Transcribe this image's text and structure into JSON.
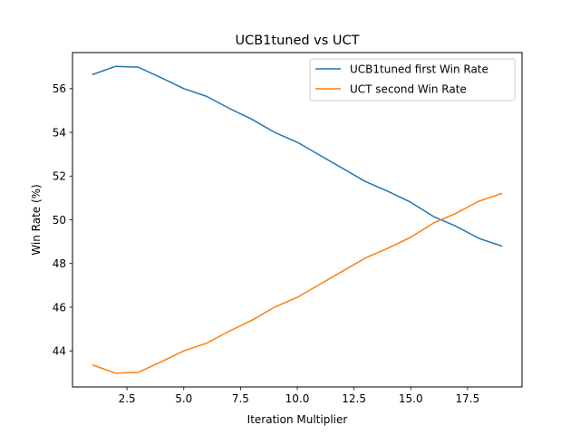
{
  "chart_data": {
    "type": "line",
    "title": "UCB1tuned vs UCT",
    "xlabel": "Iteration Multiplier",
    "ylabel": "Win Rate (%)",
    "xlim": [
      0.1,
      19.9
    ],
    "ylim": [
      42.35,
      57.65
    ],
    "xticks": [
      2.5,
      5.0,
      7.5,
      10.0,
      12.5,
      15.0,
      17.5
    ],
    "xtick_labels": [
      "2.5",
      "5.0",
      "7.5",
      "10.0",
      "12.5",
      "15.0",
      "17.5"
    ],
    "yticks": [
      44,
      46,
      48,
      50,
      52,
      54,
      56
    ],
    "ytick_labels": [
      "44",
      "46",
      "48",
      "50",
      "52",
      "54",
      "56"
    ],
    "grid": false,
    "legend_position": "top-right",
    "x": [
      1,
      2,
      3,
      4,
      5,
      6,
      7,
      8,
      9,
      10,
      11,
      12,
      13,
      14,
      15,
      16,
      17,
      18,
      19
    ],
    "series": [
      {
        "name": "UCB1tuned first Win Rate",
        "color": "#1f77b4",
        "values": [
          56.65,
          57.02,
          56.98,
          56.5,
          56.0,
          55.65,
          55.1,
          54.6,
          54.0,
          53.55,
          52.95,
          52.35,
          51.75,
          51.3,
          50.8,
          50.15,
          49.7,
          49.15,
          48.8
        ]
      },
      {
        "name": "UCT second Win Rate",
        "color": "#ff7f0e",
        "values": [
          43.35,
          42.98,
          43.02,
          43.5,
          44.0,
          44.35,
          44.9,
          45.4,
          46.0,
          46.45,
          47.05,
          47.65,
          48.25,
          48.7,
          49.2,
          49.85,
          50.3,
          50.85,
          51.2
        ]
      }
    ]
  }
}
